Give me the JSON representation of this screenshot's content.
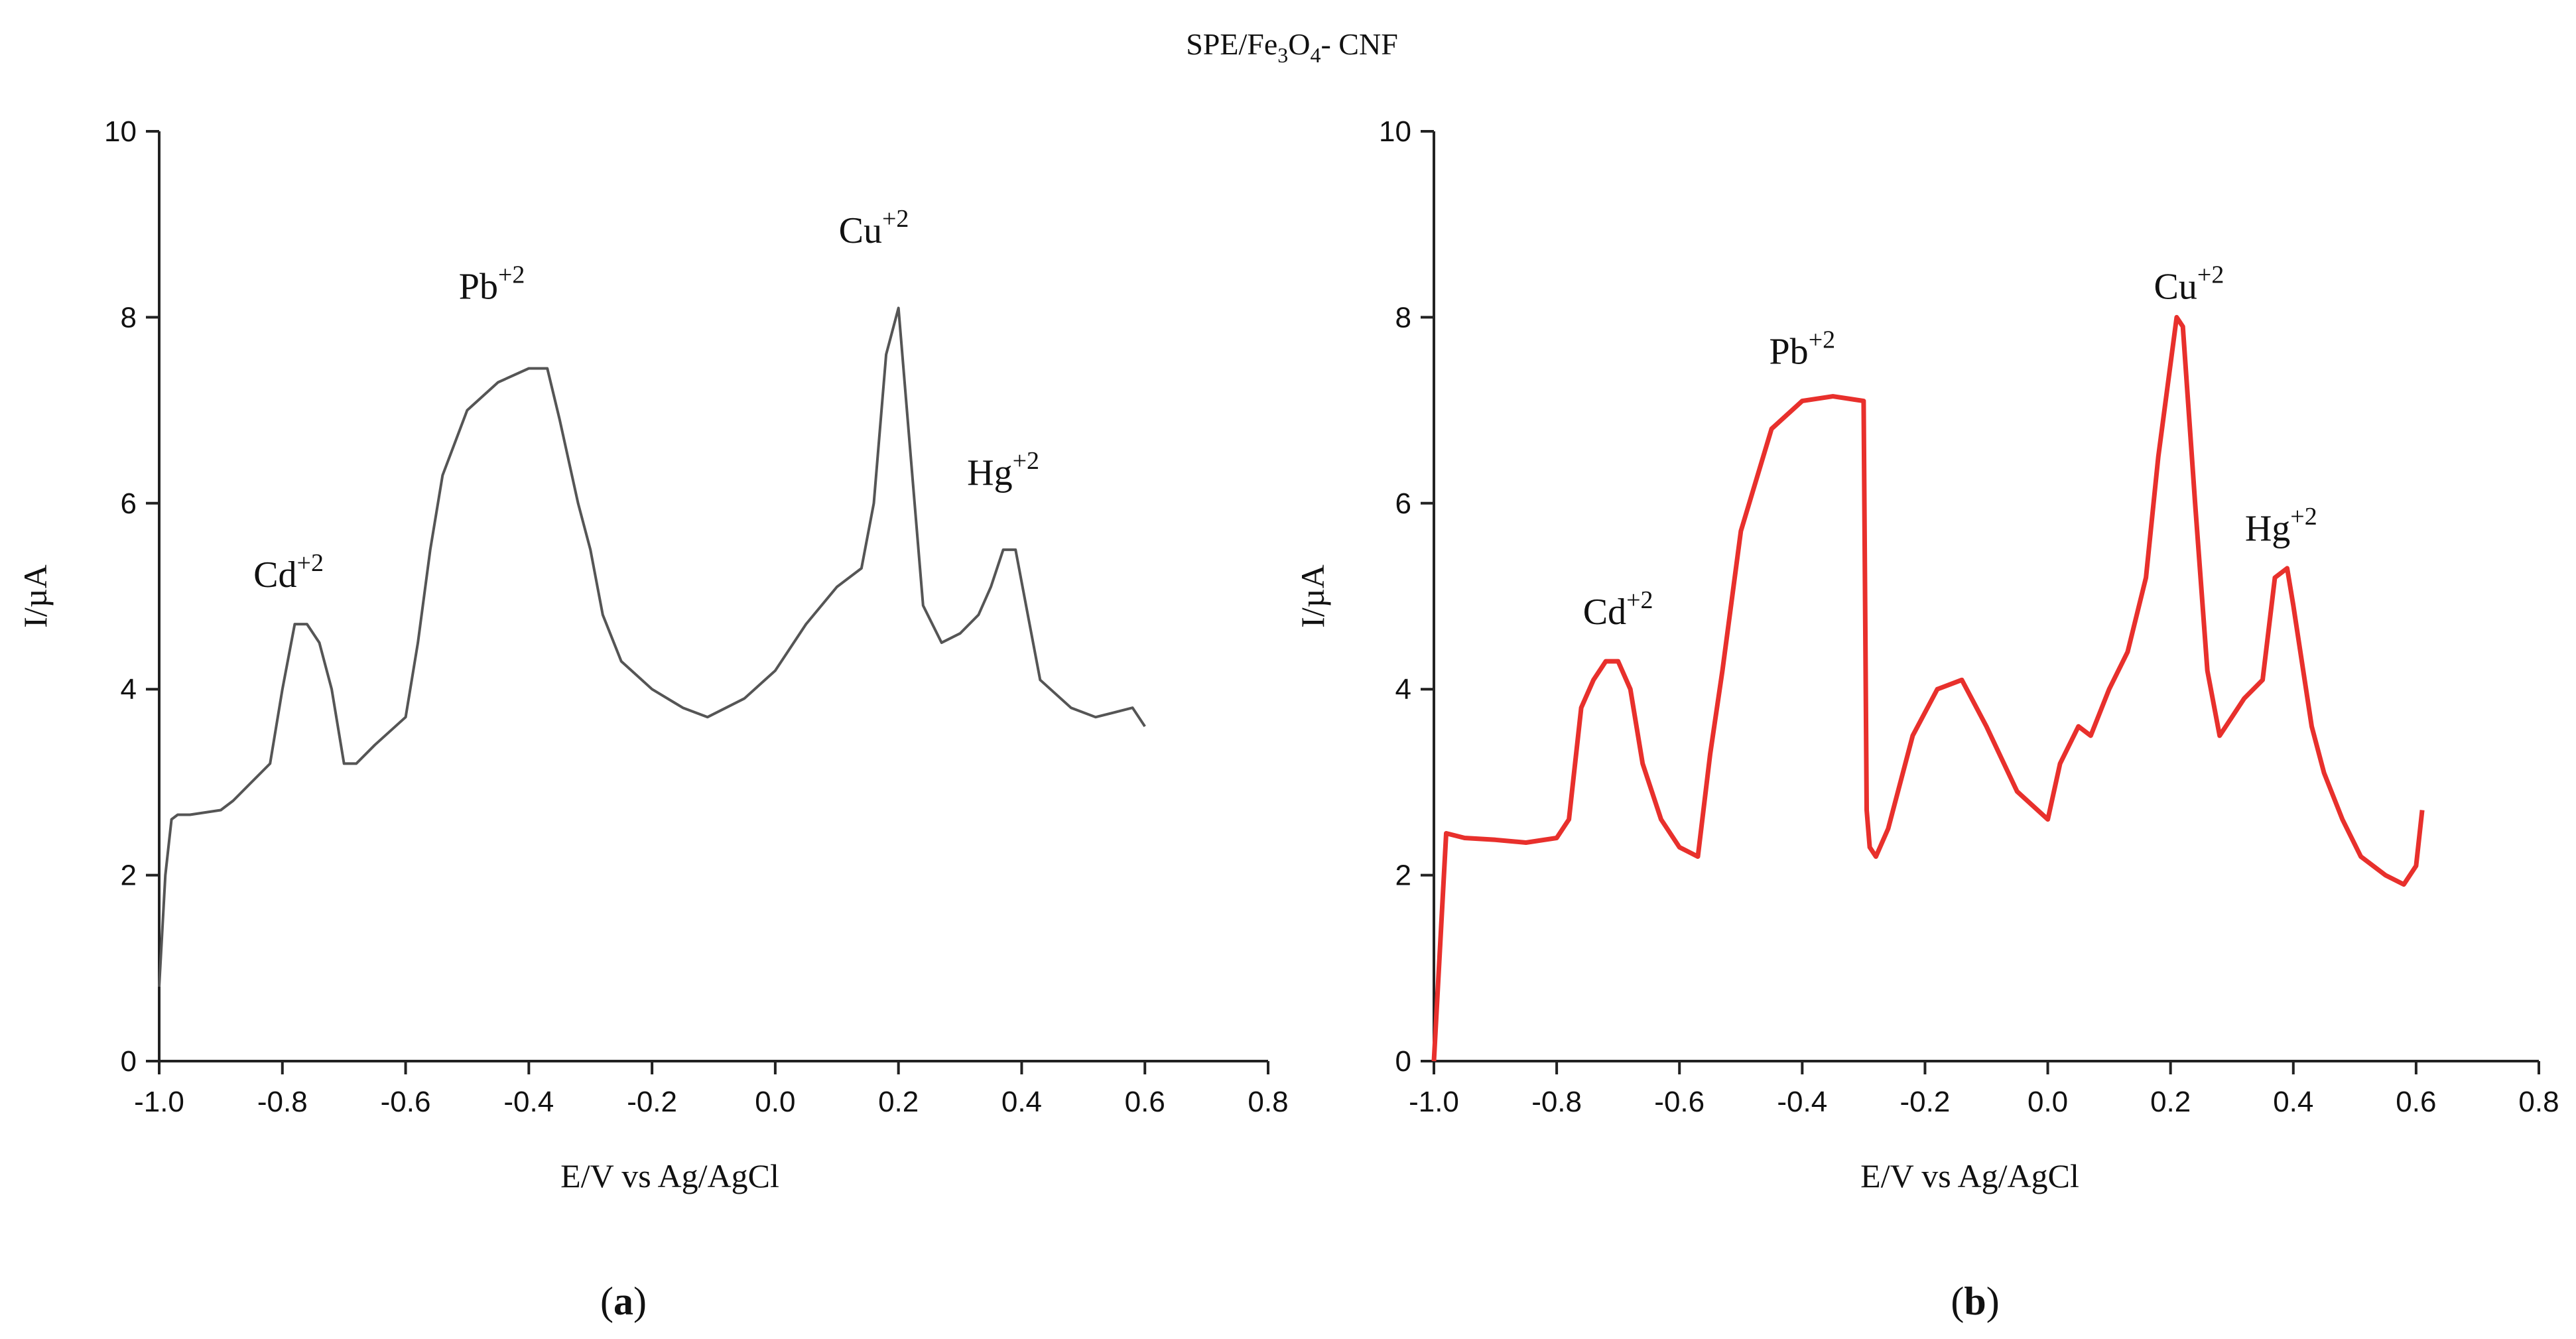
{
  "figure": {
    "title_parts": [
      "SPE/Fe",
      "3",
      "O",
      "4",
      "- CNF"
    ],
    "panel_tags": [
      {
        "open": "(",
        "letter": "a",
        "close": ")"
      },
      {
        "open": "(",
        "letter": "b",
        "close": ")"
      }
    ]
  },
  "chart_data": [
    {
      "type": "line",
      "panel": "a",
      "title": "",
      "xlabel": "E/V vs Ag/AgCl",
      "ylabel": "I/µA",
      "xlim": [
        -1.0,
        0.8
      ],
      "ylim": [
        0,
        10
      ],
      "xticks": [
        -1.0,
        -0.8,
        -0.6,
        -0.4,
        -0.2,
        0.0,
        0.2,
        0.4,
        0.6,
        0.8
      ],
      "xtick_labels": [
        "-1.0",
        "-0.8",
        "-0.6",
        "-0.4",
        "-0.2",
        "0.0",
        "0.2",
        "0.4",
        "0.6",
        "0.8"
      ],
      "yticks": [
        0,
        2,
        4,
        6,
        8,
        10
      ],
      "ytick_labels": [
        "0",
        "2",
        "4",
        "6",
        "8",
        "10"
      ],
      "grid": false,
      "color": "#555555",
      "series": [
        {
          "name": "SPE/Fe3O4-CNF",
          "x": [
            -1.0,
            -0.99,
            -0.98,
            -0.97,
            -0.95,
            -0.9,
            -0.88,
            -0.85,
            -0.82,
            -0.8,
            -0.78,
            -0.76,
            -0.74,
            -0.72,
            -0.7,
            -0.68,
            -0.65,
            -0.6,
            -0.58,
            -0.56,
            -0.54,
            -0.5,
            -0.45,
            -0.4,
            -0.37,
            -0.35,
            -0.32,
            -0.3,
            -0.28,
            -0.25,
            -0.2,
            -0.15,
            -0.11,
            -0.05,
            0.0,
            0.05,
            0.1,
            0.14,
            0.16,
            0.18,
            0.2,
            0.22,
            0.24,
            0.27,
            0.3,
            0.33,
            0.35,
            0.37,
            0.39,
            0.41,
            0.43,
            0.48,
            0.52,
            0.55,
            0.58,
            0.6
          ],
          "y": [
            0.8,
            2.0,
            2.6,
            2.65,
            2.65,
            2.7,
            2.8,
            3.0,
            3.2,
            4.0,
            4.7,
            4.7,
            4.5,
            4.0,
            3.2,
            3.2,
            3.4,
            3.7,
            4.5,
            5.5,
            6.3,
            7.0,
            7.3,
            7.45,
            7.45,
            6.9,
            6.0,
            5.5,
            4.8,
            4.3,
            4.0,
            3.8,
            3.7,
            3.9,
            4.2,
            4.7,
            5.1,
            5.3,
            6.0,
            7.6,
            8.1,
            6.5,
            4.9,
            4.5,
            4.6,
            4.8,
            5.1,
            5.5,
            5.5,
            4.8,
            4.1,
            3.8,
            3.7,
            3.75,
            3.8,
            3.6
          ]
        }
      ],
      "annotations": [
        {
          "ion": "Cd",
          "charge": "+2",
          "x": -0.79,
          "y": 5.1
        },
        {
          "ion": "Pb",
          "charge": "+2",
          "x": -0.46,
          "y": 8.2
        },
        {
          "ion": "Cu",
          "charge": "+2",
          "x": 0.16,
          "y": 8.8
        },
        {
          "ion": "Hg",
          "charge": "+2",
          "x": 0.37,
          "y": 6.2
        }
      ]
    },
    {
      "type": "line",
      "panel": "b",
      "title": "",
      "xlabel": "E/V vs Ag/AgCl",
      "ylabel": "I/µA",
      "xlim": [
        -1.0,
        0.8
      ],
      "ylim": [
        0,
        10
      ],
      "xticks": [
        -1.0,
        -0.8,
        -0.6,
        -0.4,
        -0.2,
        0.0,
        0.2,
        0.4,
        0.6,
        0.8
      ],
      "xtick_labels": [
        "-1.0",
        "-0.8",
        "-0.6",
        "-0.4",
        "-0.2",
        "0.0",
        "0.2",
        "0.4",
        "0.6",
        "0.8"
      ],
      "yticks": [
        0,
        2,
        4,
        6,
        8,
        10
      ],
      "ytick_labels": [
        "0",
        "2",
        "4",
        "6",
        "8",
        "10"
      ],
      "grid": false,
      "color": "#e8302c",
      "series": [
        {
          "name": "SPE/Fe3O4-CNF",
          "x": [
            -1.0,
            -0.98,
            -0.95,
            -0.9,
            -0.85,
            -0.8,
            -0.78,
            -0.76,
            -0.74,
            -0.72,
            -0.7,
            -0.68,
            -0.66,
            -0.63,
            -0.6,
            -0.57,
            -0.55,
            -0.53,
            -0.5,
            -0.45,
            -0.4,
            -0.35,
            -0.3,
            -0.295,
            -0.29,
            -0.28,
            -0.26,
            -0.22,
            -0.18,
            -0.14,
            -0.1,
            -0.05,
            0.0,
            0.02,
            0.05,
            0.07,
            0.1,
            0.13,
            0.16,
            0.18,
            0.21,
            0.22,
            0.24,
            0.26,
            0.28,
            0.3,
            0.32,
            0.35,
            0.37,
            0.39,
            0.4,
            0.43,
            0.45,
            0.48,
            0.51,
            0.55,
            0.58,
            0.6,
            0.61
          ],
          "y": [
            0.0,
            2.45,
            2.4,
            2.38,
            2.35,
            2.4,
            2.6,
            3.8,
            4.1,
            4.3,
            4.3,
            4.0,
            3.2,
            2.6,
            2.3,
            2.2,
            3.3,
            4.2,
            5.7,
            6.8,
            7.1,
            7.15,
            7.1,
            2.7,
            2.3,
            2.2,
            2.5,
            3.5,
            4.0,
            4.1,
            3.6,
            2.9,
            2.6,
            3.2,
            3.6,
            3.5,
            4.0,
            4.4,
            5.2,
            6.5,
            8.0,
            7.9,
            6.0,
            4.2,
            3.5,
            3.7,
            3.9,
            4.1,
            5.2,
            5.3,
            4.9,
            3.6,
            3.1,
            2.6,
            2.2,
            2.0,
            1.9,
            2.1,
            2.7
          ]
        }
      ],
      "annotations": [
        {
          "ion": "Cd",
          "charge": "+2",
          "x": -0.7,
          "y": 4.7
        },
        {
          "ion": "Pb",
          "charge": "+2",
          "x": -0.4,
          "y": 7.5
        },
        {
          "ion": "Cu",
          "charge": "+2",
          "x": 0.23,
          "y": 8.2
        },
        {
          "ion": "Hg",
          "charge": "+2",
          "x": 0.38,
          "y": 5.6
        }
      ]
    }
  ]
}
